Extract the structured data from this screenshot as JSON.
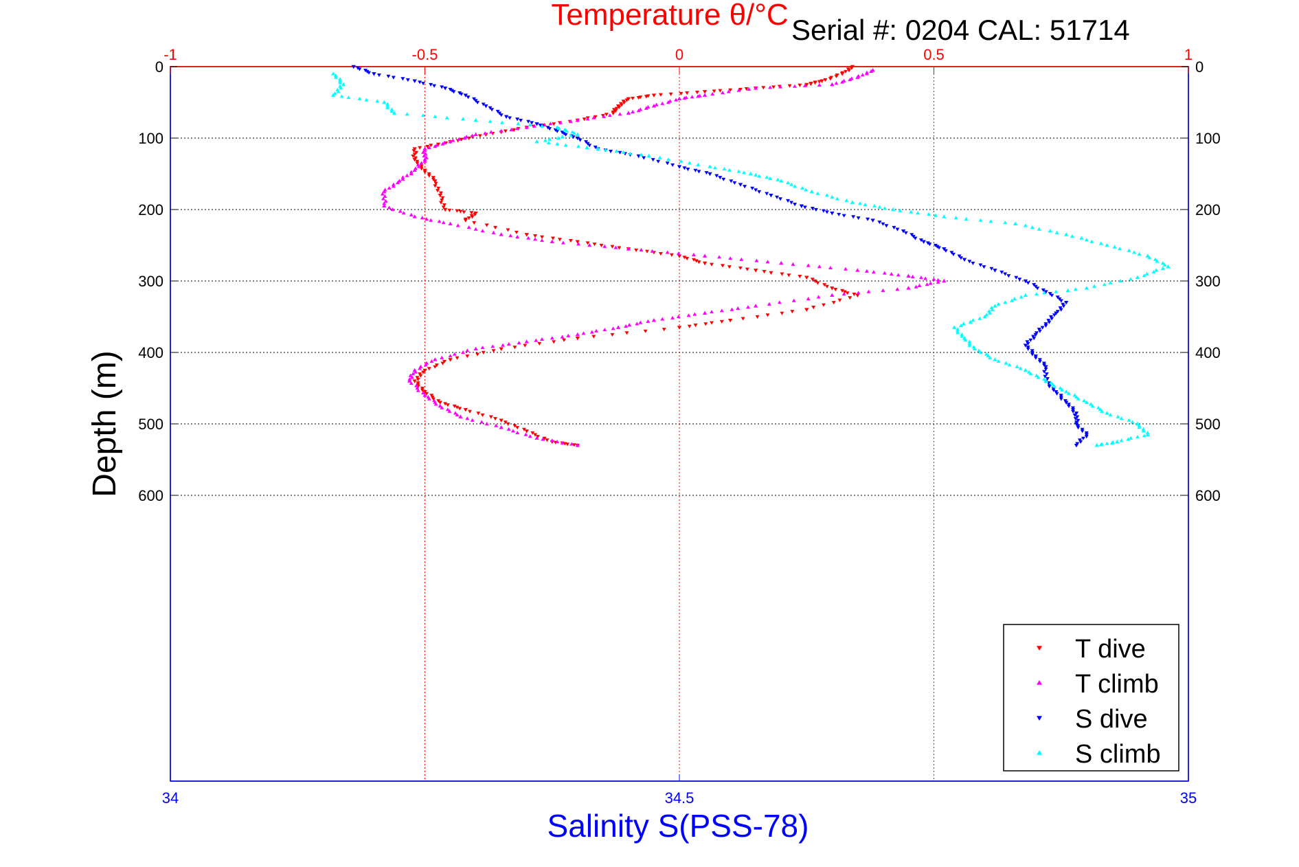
{
  "chart_data": {
    "type": "scatter",
    "title": "Temperature θ/°C",
    "annotation": "Serial #: 0204  CAL: 51714",
    "xlabel_bottom": "Salinity S(PSS-78)",
    "xlabel_top": "Temperature θ/°C",
    "ylabel": "Depth (m)",
    "ylim": [
      0,
      1000
    ],
    "y_reversed": true,
    "yticks": [
      "0",
      "100",
      "200",
      "300",
      "400",
      "500",
      "600"
    ],
    "yticks_right": [
      "0",
      "100",
      "200",
      "300",
      "400",
      "500",
      "600"
    ],
    "x_bottom": {
      "range": [
        34,
        35
      ],
      "ticks": [
        "34",
        "34.5",
        "35"
      ],
      "color": "#0000ff"
    },
    "x_top": {
      "range": [
        -1,
        1
      ],
      "ticks": [
        "-1",
        "-0.5",
        "0",
        "0.5",
        "1"
      ],
      "color": "#ff0000"
    },
    "grid": true,
    "legend_position": "bottom-right",
    "legend": [
      "T dive",
      "T climb",
      "S dive",
      "S climb"
    ],
    "series": [
      {
        "name": "T dive",
        "axis": "top",
        "color": "#ff0000",
        "marker": "triangle-down",
        "points": [
          [
            0.34,
            0
          ],
          [
            0.32,
            10
          ],
          [
            0.28,
            20
          ],
          [
            0.25,
            25
          ],
          [
            0.15,
            30
          ],
          [
            0.05,
            35
          ],
          [
            -0.05,
            40
          ],
          [
            -0.1,
            45
          ],
          [
            -0.12,
            55
          ],
          [
            -0.13,
            65
          ],
          [
            -0.2,
            75
          ],
          [
            -0.3,
            85
          ],
          [
            -0.38,
            95
          ],
          [
            -0.45,
            105
          ],
          [
            -0.52,
            115
          ],
          [
            -0.52,
            130
          ],
          [
            -0.5,
            145
          ],
          [
            -0.48,
            160
          ],
          [
            -0.47,
            180
          ],
          [
            -0.46,
            200
          ],
          [
            -0.4,
            205
          ],
          [
            -0.42,
            215
          ],
          [
            -0.3,
            235
          ],
          [
            -0.2,
            245
          ],
          [
            -0.1,
            255
          ],
          [
            0.0,
            265
          ],
          [
            0.05,
            275
          ],
          [
            0.15,
            285
          ],
          [
            0.25,
            295
          ],
          [
            0.3,
            310
          ],
          [
            0.35,
            320
          ],
          [
            0.25,
            340
          ],
          [
            0.1,
            355
          ],
          [
            0.0,
            365
          ],
          [
            -0.2,
            380
          ],
          [
            -0.35,
            395
          ],
          [
            -0.45,
            410
          ],
          [
            -0.5,
            425
          ],
          [
            -0.52,
            440
          ],
          [
            -0.5,
            455
          ],
          [
            -0.47,
            470
          ],
          [
            -0.42,
            480
          ],
          [
            -0.35,
            495
          ],
          [
            -0.3,
            510
          ],
          [
            -0.25,
            525
          ],
          [
            -0.2,
            530
          ]
        ]
      },
      {
        "name": "T climb",
        "axis": "top",
        "color": "#ff00ff",
        "marker": "triangle-up",
        "points": [
          [
            0.38,
            5
          ],
          [
            0.35,
            15
          ],
          [
            0.3,
            25
          ],
          [
            0.15,
            30
          ],
          [
            0.05,
            40
          ],
          [
            0.0,
            45
          ],
          [
            -0.05,
            55
          ],
          [
            -0.1,
            65
          ],
          [
            -0.2,
            75
          ],
          [
            -0.3,
            85
          ],
          [
            -0.4,
            95
          ],
          [
            -0.45,
            105
          ],
          [
            -0.5,
            115
          ],
          [
            -0.5,
            130
          ],
          [
            -0.52,
            145
          ],
          [
            -0.55,
            160
          ],
          [
            -0.58,
            175
          ],
          [
            -0.58,
            195
          ],
          [
            -0.52,
            210
          ],
          [
            -0.45,
            220
          ],
          [
            -0.35,
            235
          ],
          [
            -0.25,
            245
          ],
          [
            -0.1,
            255
          ],
          [
            0.05,
            265
          ],
          [
            0.2,
            275
          ],
          [
            0.35,
            285
          ],
          [
            0.45,
            293
          ],
          [
            0.52,
            300
          ],
          [
            0.45,
            310
          ],
          [
            0.3,
            320
          ],
          [
            0.15,
            335
          ],
          [
            0.05,
            345
          ],
          [
            -0.05,
            355
          ],
          [
            -0.12,
            365
          ],
          [
            -0.2,
            375
          ],
          [
            -0.3,
            385
          ],
          [
            -0.4,
            395
          ],
          [
            -0.48,
            410
          ],
          [
            -0.52,
            425
          ],
          [
            -0.53,
            440
          ],
          [
            -0.5,
            460
          ],
          [
            -0.47,
            475
          ],
          [
            -0.43,
            490
          ],
          [
            -0.35,
            505
          ],
          [
            -0.28,
            520
          ],
          [
            -0.2,
            530
          ]
        ]
      },
      {
        "name": "S dive",
        "axis": "bottom",
        "color": "#0000ff",
        "marker": "triangle-down",
        "points": [
          [
            34.18,
            0
          ],
          [
            34.2,
            10
          ],
          [
            34.24,
            20
          ],
          [
            34.27,
            30
          ],
          [
            34.29,
            40
          ],
          [
            34.31,
            55
          ],
          [
            34.33,
            70
          ],
          [
            34.36,
            80
          ],
          [
            34.38,
            90
          ],
          [
            34.4,
            100
          ],
          [
            34.42,
            115
          ],
          [
            34.46,
            125
          ],
          [
            34.5,
            140
          ],
          [
            34.53,
            150
          ],
          [
            34.56,
            165
          ],
          [
            34.59,
            180
          ],
          [
            34.62,
            195
          ],
          [
            34.65,
            205
          ],
          [
            34.69,
            215
          ],
          [
            34.72,
            230
          ],
          [
            34.74,
            245
          ],
          [
            34.76,
            255
          ],
          [
            34.78,
            270
          ],
          [
            34.81,
            285
          ],
          [
            34.84,
            300
          ],
          [
            34.86,
            315
          ],
          [
            34.88,
            330
          ],
          [
            34.87,
            345
          ],
          [
            34.86,
            360
          ],
          [
            34.85,
            375
          ],
          [
            34.84,
            390
          ],
          [
            34.85,
            405
          ],
          [
            34.86,
            420
          ],
          [
            34.86,
            440
          ],
          [
            34.87,
            455
          ],
          [
            34.88,
            470
          ],
          [
            34.89,
            485
          ],
          [
            34.89,
            500
          ],
          [
            34.9,
            515
          ],
          [
            34.89,
            530
          ]
        ]
      },
      {
        "name": "S climb",
        "axis": "bottom",
        "color": "#00ffff",
        "marker": "triangle-up",
        "points": [
          [
            34.16,
            10
          ],
          [
            34.17,
            25
          ],
          [
            34.16,
            40
          ],
          [
            34.21,
            50
          ],
          [
            34.22,
            65
          ],
          [
            34.3,
            75
          ],
          [
            34.38,
            85
          ],
          [
            34.4,
            95
          ],
          [
            34.36,
            105
          ],
          [
            34.42,
            115
          ],
          [
            34.47,
            125
          ],
          [
            34.53,
            140
          ],
          [
            34.57,
            150
          ],
          [
            34.6,
            160
          ],
          [
            34.63,
            175
          ],
          [
            34.67,
            190
          ],
          [
            34.71,
            200
          ],
          [
            34.76,
            210
          ],
          [
            34.83,
            220
          ],
          [
            34.88,
            235
          ],
          [
            34.92,
            250
          ],
          [
            34.96,
            265
          ],
          [
            34.98,
            280
          ],
          [
            34.95,
            295
          ],
          [
            34.9,
            310
          ],
          [
            34.84,
            320
          ],
          [
            34.81,
            335
          ],
          [
            34.8,
            350
          ],
          [
            34.77,
            365
          ],
          [
            34.78,
            380
          ],
          [
            34.79,
            395
          ],
          [
            34.81,
            410
          ],
          [
            34.84,
            425
          ],
          [
            34.86,
            440
          ],
          [
            34.88,
            455
          ],
          [
            34.9,
            470
          ],
          [
            34.92,
            485
          ],
          [
            34.95,
            500
          ],
          [
            34.96,
            515
          ],
          [
            34.93,
            525
          ],
          [
            34.91,
            530
          ]
        ]
      }
    ]
  }
}
